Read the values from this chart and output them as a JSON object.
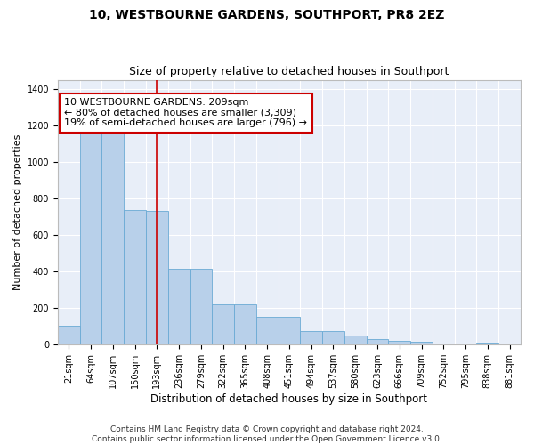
{
  "title": "10, WESTBOURNE GARDENS, SOUTHPORT, PR8 2EZ",
  "subtitle": "Size of property relative to detached houses in Southport",
  "xlabel": "Distribution of detached houses by size in Southport",
  "ylabel": "Number of detached properties",
  "categories": [
    "21sqm",
    "64sqm",
    "107sqm",
    "150sqm",
    "193sqm",
    "236sqm",
    "279sqm",
    "322sqm",
    "365sqm",
    "408sqm",
    "451sqm",
    "494sqm",
    "537sqm",
    "580sqm",
    "623sqm",
    "666sqm",
    "709sqm",
    "752sqm",
    "795sqm",
    "838sqm",
    "881sqm"
  ],
  "bar_heights": [
    105,
    1160,
    1155,
    735,
    730,
    415,
    415,
    220,
    220,
    150,
    150,
    75,
    75,
    50,
    30,
    20,
    15,
    0,
    0,
    13,
    0
  ],
  "bar_color": "#b8d0ea",
  "bar_edge_color": "#6aaad4",
  "red_line_x": 4.5,
  "annotation_text": "10 WESTBOURNE GARDENS: 209sqm\n← 80% of detached houses are smaller (3,309)\n19% of semi-detached houses are larger (796) →",
  "annotation_box_color": "#ffffff",
  "annotation_border_color": "#cc0000",
  "ylim": [
    0,
    1450
  ],
  "yticks": [
    0,
    200,
    400,
    600,
    800,
    1000,
    1200,
    1400
  ],
  "plot_bg_color": "#e8eef8",
  "fig_bg_color": "#ffffff",
  "grid_color": "#ffffff",
  "footnote": "Contains HM Land Registry data © Crown copyright and database right 2024.\nContains public sector information licensed under the Open Government Licence v3.0.",
  "title_fontsize": 10,
  "subtitle_fontsize": 9,
  "xlabel_fontsize": 8.5,
  "ylabel_fontsize": 8,
  "tick_fontsize": 7,
  "annotation_fontsize": 8,
  "footnote_fontsize": 6.5
}
